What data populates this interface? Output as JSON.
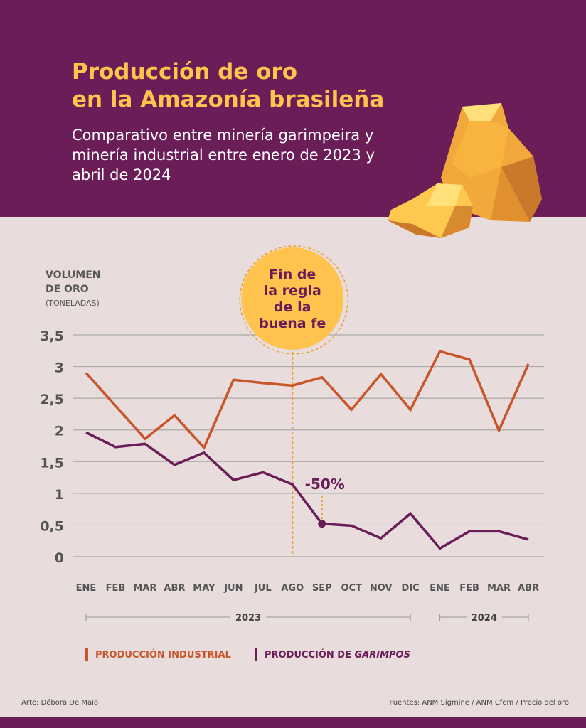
{
  "header": {
    "title_line1": "Producción de oro",
    "title_line2": "en la Amazonía brasileña",
    "subtitle": "Comparativo entre minería garimpeira y minería industrial entre enero de 2023 y abril de 2024"
  },
  "y_axis": {
    "label1": "VOLUMEN",
    "label2": "DE ORO",
    "unit": "(TONELADAS)"
  },
  "annotation": {
    "label": [
      "Fin de",
      "la regla",
      "de la",
      "buena fe"
    ],
    "month": "AGO",
    "drop_label": "-50%",
    "drop_month": "SEP"
  },
  "legend": {
    "industrial": "PRODUCCIÓN INDUSTRIAL",
    "garimpos_prefix": "PRODUCCIÓN DE ",
    "garimpos_italic": "GARIMPOS"
  },
  "footer": {
    "art": "Arte: Débora De Maio",
    "sources": "Fuentes: ANM Sigmine / ANM Cfem / Precio del oro"
  },
  "colors": {
    "industrial": "#c8562a",
    "garimpos": "#6b1d57",
    "accent": "#ffc34e",
    "background": "#e8dcdc"
  },
  "chart_data": {
    "type": "line",
    "categories": [
      "ENE",
      "FEB",
      "MAR",
      "ABR",
      "MAY",
      "JUN",
      "JUL",
      "AGO",
      "SEP",
      "OCT",
      "NOV",
      "DIC",
      "ENE",
      "FEB",
      "MAR",
      "ABR"
    ],
    "year_groups": [
      {
        "label": "2023",
        "from": 0,
        "to": 11
      },
      {
        "label": "2024",
        "from": 12,
        "to": 15
      }
    ],
    "yticks": [
      "0",
      "0,5",
      "1",
      "1,5",
      "2",
      "2,5",
      "3",
      "3,5"
    ],
    "ylim": [
      0,
      3.5
    ],
    "grid": true,
    "legend_placement": "bottom",
    "series": [
      {
        "name": "PRODUCCIÓN INDUSTRIAL",
        "color": "#c8562a",
        "values": [
          2.9,
          2.38,
          1.86,
          2.23,
          1.72,
          2.79,
          2.74,
          2.7,
          2.83,
          2.32,
          2.88,
          2.32,
          3.24,
          3.11,
          1.99,
          3.04
        ]
      },
      {
        "name": "PRODUCCIÓN DE GARIMPOS",
        "color": "#6b1d57",
        "values": [
          1.96,
          1.73,
          1.78,
          1.45,
          1.64,
          1.21,
          1.33,
          1.14,
          0.52,
          0.49,
          0.29,
          0.68,
          0.13,
          0.4,
          0.4,
          0.27
        ]
      }
    ]
  }
}
